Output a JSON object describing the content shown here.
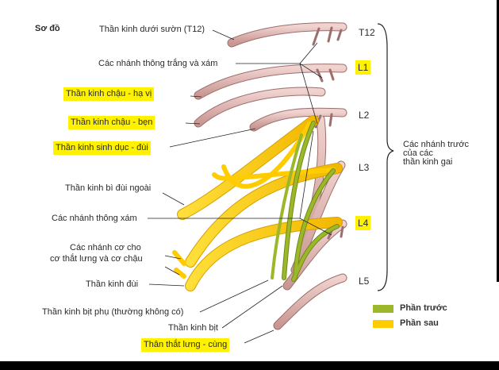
{
  "title": "Sơ đồ",
  "labels": {
    "t12_nerve": "Thần kinh dưới sườn (T12)",
    "rami_communicantes": "Các nhánh thông trắng và xám",
    "iliohypogastric": "Thần kinh chậu - hạ vị",
    "ilioinguinal": "Thần kinh chậu - bẹn",
    "genitofemoral": "Thần kinh sinh dục - đùi",
    "lateral_femoral_cutaneous": "Thần kinh bì đùi ngoài",
    "gray_rami": "Các nhánh thông xám",
    "muscular_branches_1": "Các nhánh cơ cho",
    "muscular_branches_2": "cơ thắt lưng và cơ chậu",
    "femoral": "Thần kinh đùi",
    "accessory_obturator": "Thần kinh bịt phụ (thường không có)",
    "obturator": "Thần kinh bịt",
    "lumbosacral_trunk": "Thân thắt lưng - cùng"
  },
  "levels": [
    "T12",
    "L1",
    "L2",
    "L3",
    "L4",
    "L5"
  ],
  "bracket_label": [
    "Các nhánh trước",
    "của các",
    "thần kinh gai"
  ],
  "legend": [
    {
      "label": "Phần trước",
      "color": "#9cb82a"
    },
    {
      "label": "Phần sau",
      "color": "#ffcc00"
    }
  ],
  "colors": {
    "highlight": "#fff200",
    "nerve_pink": "#e3b8b4",
    "nerve_pink_edge": "#9c6f6c",
    "anterior": "#9cb82a",
    "posterior": "#ffcc00"
  }
}
